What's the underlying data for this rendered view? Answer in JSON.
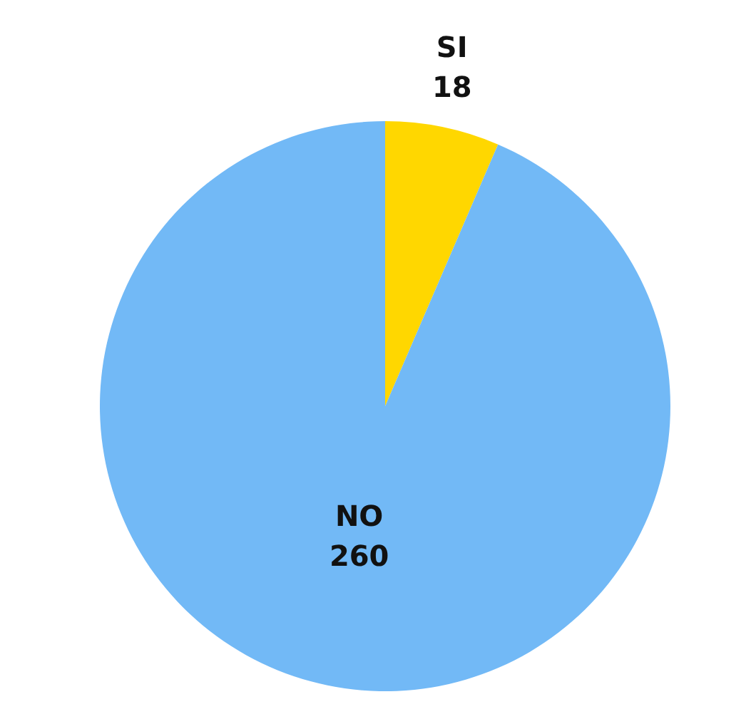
{
  "chart_data": {
    "type": "pie",
    "categories": [
      "SI",
      "NO"
    ],
    "values": [
      18,
      260
    ],
    "colors": [
      "#ffd700",
      "#72b9f6"
    ],
    "data_labels": true,
    "legend": false
  }
}
